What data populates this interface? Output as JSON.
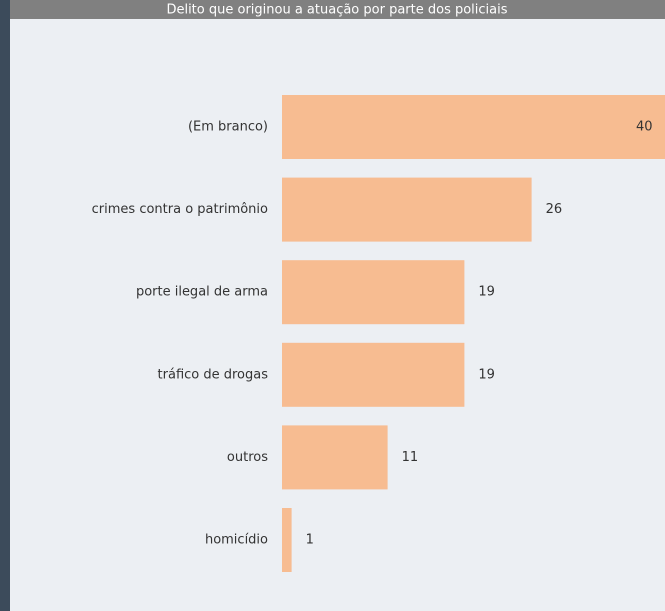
{
  "chart_data": {
    "type": "bar",
    "orientation": "horizontal",
    "title": "Delito que originou a atuação por parte dos policiais",
    "categories": [
      "(Em branco)",
      "crimes contra o patrimônio",
      "porte ilegal de arma",
      "tráfico de drogas",
      "outros",
      "homicídio"
    ],
    "values": [
      40,
      26,
      19,
      19,
      11,
      1
    ],
    "color": "#f7bc91"
  }
}
